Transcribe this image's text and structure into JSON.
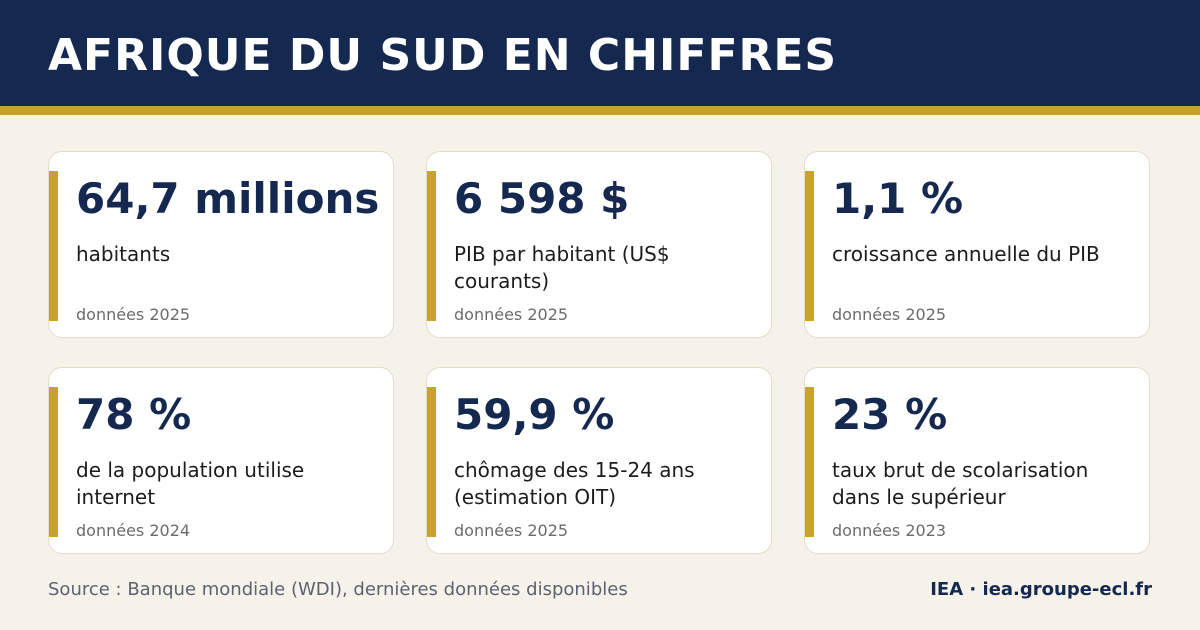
{
  "header": {
    "title": "AFRIQUE DU SUD EN CHIFFRES"
  },
  "cards": [
    {
      "value": "64,7 millions",
      "label": "habitants",
      "year": "données 2025"
    },
    {
      "value": "6 598 $",
      "label": "PIB par habitant (US$ courants)",
      "year": "données 2025"
    },
    {
      "value": "1,1 %",
      "label": "croissance annuelle du PIB",
      "year": "données 2025"
    },
    {
      "value": "78 %",
      "label": "de la population utilise internet",
      "year": "données 2024"
    },
    {
      "value": "59,9 %",
      "label": "chômage des 15-24 ans (estimation OIT)",
      "year": "données 2025"
    },
    {
      "value": "23 %",
      "label": "taux brut de scolarisation dans le supérieur",
      "year": "données 2023"
    }
  ],
  "footer": {
    "source": "Source : Banque mondiale (WDI), dernières données disponibles",
    "brand": "IEA · iea.groupe-ecl.fr"
  },
  "colors": {
    "navy": "#15284f",
    "gold": "#c9a12e",
    "background": "#f5f2ea"
  }
}
